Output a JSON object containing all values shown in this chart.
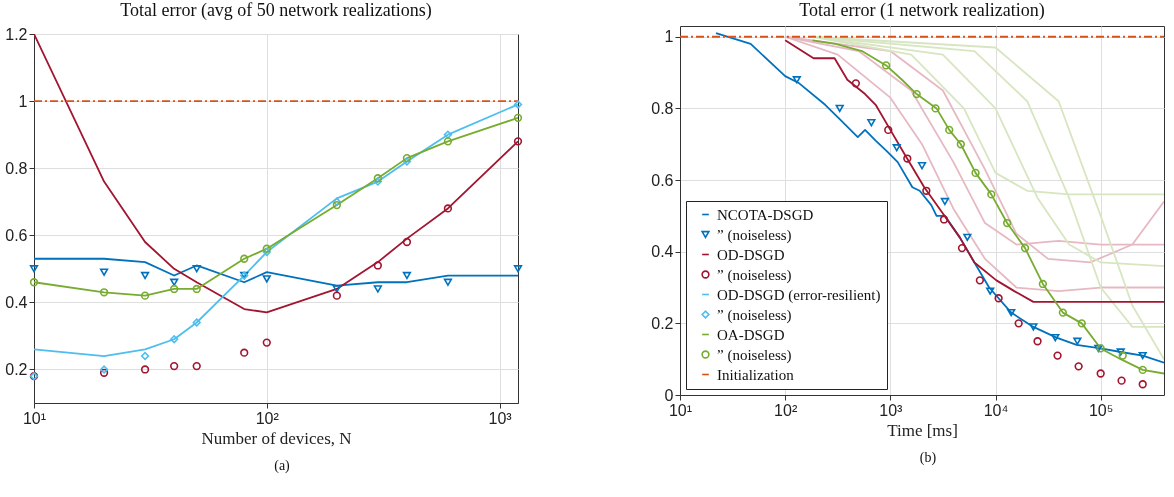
{
  "chart_data": [
    {
      "type": "line",
      "title": "Total error (avg of 50 network realizations)",
      "xlabel": "Number of devices, N",
      "annotations": [
        "(a)"
      ],
      "log": "x",
      "grid": true,
      "x": [
        10,
        20,
        30,
        40,
        50,
        80,
        100,
        200,
        300,
        400,
        600,
        1200
      ],
      "xlim": [
        10,
        1200
      ],
      "xticks": [
        {
          "value": 10,
          "label": "10¹"
        },
        {
          "value": 100,
          "label": "10²"
        },
        {
          "value": 1000,
          "label": "10³"
        }
      ],
      "ylim": [
        0.1,
        1.2
      ],
      "yticks": [
        0.2,
        0.4,
        0.6,
        0.8,
        1,
        1.2
      ],
      "series": [
        {
          "type": "line",
          "color": "#0072bd",
          "values": [
            0.53,
            0.53,
            0.52,
            0.48,
            0.51,
            0.46,
            0.49,
            0.45,
            0.46,
            0.46,
            0.48,
            0.48
          ]
        },
        {
          "type": "scatter",
          "marker": "triangle",
          "color": "#0072bd",
          "values": [
            0.5,
            0.49,
            0.48,
            0.46,
            0.5,
            0.48,
            0.47,
            0.44,
            0.44,
            0.48,
            0.46,
            0.5
          ]
        },
        {
          "type": "line",
          "color": "#a2142f",
          "values": [
            1.2,
            0.76,
            0.58,
            0.5,
            0.46,
            0.38,
            0.37,
            0.44,
            0.52,
            0.59,
            0.68,
            0.88
          ]
        },
        {
          "type": "scatter",
          "marker": "circle",
          "color": "#a2142f",
          "values": [
            0.18,
            0.19,
            0.2,
            0.21,
            0.21,
            0.25,
            0.28,
            0.42,
            0.51,
            0.58,
            0.68,
            0.88
          ]
        },
        {
          "type": "line",
          "color": "#4dbeee",
          "values": [
            0.26,
            0.24,
            0.26,
            0.29,
            0.34,
            0.48,
            0.55,
            0.71,
            0.76,
            0.82,
            0.9,
            0.99
          ]
        },
        {
          "type": "scatter",
          "marker": "diamond",
          "color": "#4dbeee",
          "values": [
            0.18,
            0.2,
            0.24,
            0.29,
            0.34,
            0.48,
            0.55,
            0.7,
            0.76,
            0.82,
            0.9,
            0.99
          ]
        },
        {
          "type": "line",
          "color": "#77ac30",
          "values": [
            0.46,
            0.43,
            0.42,
            0.44,
            0.44,
            0.53,
            0.56,
            0.69,
            0.77,
            0.83,
            0.88,
            0.95
          ]
        },
        {
          "type": "scatter",
          "marker": "circle",
          "color": "#77ac30",
          "values": [
            0.46,
            0.43,
            0.42,
            0.44,
            0.44,
            0.53,
            0.56,
            0.69,
            0.77,
            0.83,
            0.88,
            0.95
          ]
        },
        {
          "type": "line",
          "color": "#d95319",
          "line_style": "dashed",
          "x": [
            10,
            1200
          ],
          "values": [
            1,
            1
          ]
        }
      ]
    },
    {
      "type": "line",
      "title": "Total error (1 network realization)",
      "xlabel": "Time [ms]",
      "annotations": [
        "(b)"
      ],
      "log": "x",
      "grid": true,
      "legend": "bottom left",
      "xlim": [
        10,
        400000
      ],
      "xticks": [
        {
          "value": 10,
          "label": "10¹"
        },
        {
          "value": 100,
          "label": "10²"
        },
        {
          "value": 1000,
          "label": "10³"
        },
        {
          "value": 10000,
          "label": "10⁴"
        },
        {
          "value": 100000,
          "label": "10⁵"
        }
      ],
      "ylim": [
        0,
        1.03
      ],
      "yticks": [
        0,
        0.2,
        0.4,
        0.6,
        0.8,
        1
      ],
      "series": [
        {
          "type": "line",
          "color": "#e6b9c2",
          "x": [
            100,
            316,
            1000,
            2000,
            3980,
            7940,
            15800,
            39800,
            100000,
            400000
          ],
          "values": [
            1,
            0.95,
            0.83,
            0.7,
            0.52,
            0.38,
            0.3,
            0.29,
            0.3,
            0.3
          ]
        },
        {
          "type": "line",
          "color": "#e6b9c2",
          "x": [
            100,
            500,
            1580,
            3980,
            7940,
            15800,
            39800,
            100000,
            400000
          ],
          "values": [
            1,
            0.96,
            0.85,
            0.65,
            0.48,
            0.42,
            0.43,
            0.42,
            0.42
          ]
        },
        {
          "type": "line",
          "color": "#e6b9c2",
          "x": [
            100,
            1000,
            3160,
            7940,
            15800,
            31600,
            79400,
            200000,
            400000
          ],
          "values": [
            1,
            0.96,
            0.85,
            0.63,
            0.45,
            0.38,
            0.37,
            0.42,
            0.54
          ]
        },
        {
          "type": "line",
          "color": "#d7e6c1",
          "x": [
            182,
            1580,
            5010,
            10000,
            20000,
            50100,
            158000,
            400000
          ],
          "values": [
            1,
            0.95,
            0.8,
            0.62,
            0.57,
            0.56,
            0.56,
            0.56
          ]
        },
        {
          "type": "line",
          "color": "#d7e6c1",
          "x": [
            182,
            3160,
            10000,
            25100,
            50100,
            100000,
            400000
          ],
          "values": [
            1,
            0.95,
            0.8,
            0.55,
            0.42,
            0.37,
            0.36
          ]
        },
        {
          "type": "line",
          "color": "#d7e6c1",
          "x": [
            182,
            6310,
            20000,
            50100,
            100000,
            200000,
            400000
          ],
          "values": [
            1,
            0.96,
            0.82,
            0.55,
            0.3,
            0.19,
            0.19
          ]
        },
        {
          "type": "line",
          "color": "#d7e6c1",
          "x": [
            182,
            10000,
            39800,
            100000,
            200000,
            400000
          ],
          "values": [
            1,
            0.97,
            0.82,
            0.5,
            0.25,
            0.1
          ]
        },
        {
          "type": "line",
          "name": "NCOTA-DSGD",
          "color": "#0072bd",
          "x": [
            22,
            47,
            100,
            136,
            240,
            330,
            490,
            575,
            725,
            930,
            1175,
            1620,
            1900,
            2450,
            2750,
            3300,
            4570,
            6300,
            8700,
            14100,
            22900,
            38000,
            59000,
            100000,
            155000,
            251000,
            400000
          ],
          "values": [
            1.01,
            0.98,
            0.89,
            0.87,
            0.81,
            0.77,
            0.72,
            0.74,
            0.71,
            0.68,
            0.65,
            0.58,
            0.57,
            0.53,
            0.5,
            0.5,
            0.44,
            0.37,
            0.3,
            0.23,
            0.19,
            0.16,
            0.14,
            0.13,
            0.12,
            0.11,
            0.09
          ]
        },
        {
          "type": "scatter",
          "name": "” (noiseless)",
          "marker": "triangle",
          "color": "#0072bd",
          "x": [
            129,
            330,
            660,
            1150,
            2000,
            3300,
            5400,
            8900,
            14100,
            22900,
            37000,
            60000,
            95000,
            155000,
            251000
          ],
          "values": [
            0.88,
            0.8,
            0.76,
            0.69,
            0.64,
            0.54,
            0.44,
            0.29,
            0.23,
            0.19,
            0.16,
            0.15,
            0.13,
            0.12,
            0.11
          ]
        },
        {
          "type": "line",
          "name": "OD-DSGD",
          "color": "#a2142f",
          "x": [
            100,
            186,
            295,
            390,
            575,
            725,
            1000,
            1380,
            2100,
            3100,
            4570,
            6300,
            10200,
            15100,
            22900,
            33900,
            50100,
            75900,
            112000,
            170000,
            251000,
            400000
          ],
          "values": [
            0.99,
            0.94,
            0.94,
            0.88,
            0.84,
            0.81,
            0.74,
            0.67,
            0.58,
            0.51,
            0.44,
            0.37,
            0.32,
            0.29,
            0.26,
            0.26,
            0.26,
            0.26,
            0.26,
            0.26,
            0.26,
            0.26
          ]
        },
        {
          "type": "scatter",
          "name": "” (noiseless)",
          "marker": "circle",
          "color": "#a2142f",
          "x": [
            470,
            955,
            1450,
            2200,
            3240,
            4800,
            7100,
            10700,
            16600,
            25100,
            38900,
            61700,
            100000,
            158000,
            251000
          ],
          "values": [
            0.87,
            0.74,
            0.66,
            0.57,
            0.49,
            0.41,
            0.32,
            0.27,
            0.2,
            0.15,
            0.11,
            0.08,
            0.06,
            0.04,
            0.03
          ]
        },
        {
          "type": "line",
          "name": "OD-DSGD (error-resilient)",
          "color": "#4dbeee"
        },
        {
          "type": "scatter",
          "name": "” (noiseless)",
          "marker": "diamond",
          "color": "#4dbeee"
        },
        {
          "type": "line",
          "name": "OA-DSGD",
          "color": "#77ac30",
          "x": [
            182,
            302,
            537,
            912,
            1290,
            1780,
            2750,
            3630,
            4680,
            6460,
            9120,
            12900,
            19100,
            28200,
            43700,
            66100,
            100000,
            155000,
            251000,
            400000
          ],
          "values": [
            0.99,
            0.98,
            0.96,
            0.92,
            0.88,
            0.84,
            0.8,
            0.74,
            0.7,
            0.62,
            0.56,
            0.48,
            0.41,
            0.31,
            0.23,
            0.2,
            0.13,
            0.1,
            0.07,
            0.06
          ]
        },
        {
          "type": "scatter",
          "name": "” (noiseless)",
          "marker": "circle",
          "color": "#77ac30",
          "x": [
            912,
            1780,
            2690,
            3630,
            4680,
            6460,
            9120,
            12900,
            19100,
            28200,
            43700,
            66100,
            100000,
            162000,
            251000
          ],
          "values": [
            0.92,
            0.84,
            0.8,
            0.74,
            0.7,
            0.62,
            0.56,
            0.48,
            0.41,
            0.31,
            0.23,
            0.2,
            0.13,
            0.11,
            0.07
          ]
        },
        {
          "type": "line",
          "name": "Initialization",
          "color": "#d95319",
          "line_style": "dashed",
          "x": [
            10,
            400000
          ],
          "values": [
            1,
            1
          ]
        }
      ]
    }
  ]
}
